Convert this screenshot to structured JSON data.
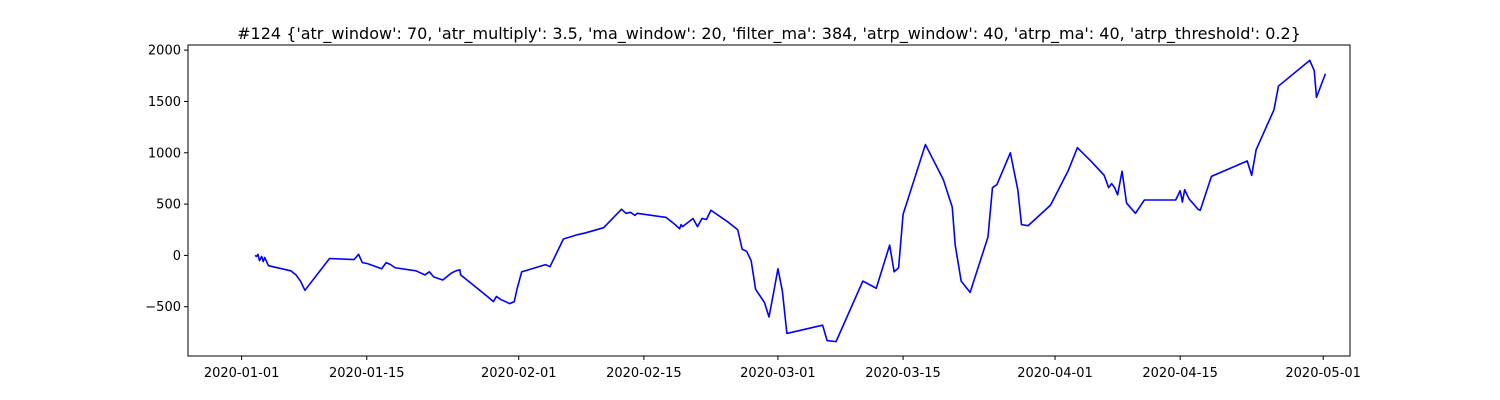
{
  "chart_data": {
    "type": "line",
    "title": "#124 {'atr_window': 70, 'atr_multiply': 3.5, 'ma_window': 20, 'filter_ma': 384, 'atrp_window': 40, 'atrp_ma': 40, 'atrp_threshold': 0.2}",
    "xlabel": "",
    "ylabel": "",
    "xlim": [
      "2019-12-26",
      "2020-05-04"
    ],
    "ylim": [
      -980,
      2050
    ],
    "grid": false,
    "x_ticks": [
      {
        "date": "2020-01-01",
        "label": "2020-01-01"
      },
      {
        "date": "2020-01-15",
        "label": "2020-01-15"
      },
      {
        "date": "2020-02-01",
        "label": "2020-02-01"
      },
      {
        "date": "2020-02-15",
        "label": "2020-02-15"
      },
      {
        "date": "2020-03-01",
        "label": "2020-03-01"
      },
      {
        "date": "2020-03-15",
        "label": "2020-03-15"
      },
      {
        "date": "2020-04-01",
        "label": "2020-04-01"
      },
      {
        "date": "2020-04-15",
        "label": "2020-04-15"
      },
      {
        "date": "2020-05-01",
        "label": "2020-05-01"
      }
    ],
    "y_ticks": [
      {
        "value": -500,
        "label": "−500"
      },
      {
        "value": 0,
        "label": "0"
      },
      {
        "value": 500,
        "label": "500"
      },
      {
        "value": 1000,
        "label": "1000"
      },
      {
        "value": 1500,
        "label": "1500"
      },
      {
        "value": 2000,
        "label": "2000"
      }
    ],
    "series": [
      {
        "color": "#0000ff",
        "points": [
          [
            "2020-01-02 12:00",
            0
          ],
          [
            "2020-01-02 16:00",
            -10
          ],
          [
            "2020-01-02 20:00",
            10
          ],
          [
            "2020-01-03 00:00",
            -50
          ],
          [
            "2020-01-03 06:00",
            -10
          ],
          [
            "2020-01-03 10:00",
            -60
          ],
          [
            "2020-01-03 14:00",
            -20
          ],
          [
            "2020-01-04 00:00",
            -100
          ],
          [
            "2020-01-06 12:00",
            -150
          ],
          [
            "2020-01-07 02:00",
            -190
          ],
          [
            "2020-01-07 14:00",
            -250
          ],
          [
            "2020-01-08 02:00",
            -340
          ],
          [
            "2020-01-10 20:00",
            -30
          ],
          [
            "2020-01-13 14:00",
            -40
          ],
          [
            "2020-01-14 02:00",
            10
          ],
          [
            "2020-01-14 12:00",
            -70
          ],
          [
            "2020-01-15 02:00",
            -80
          ],
          [
            "2020-01-16 16:00",
            -130
          ],
          [
            "2020-01-17 04:00",
            -70
          ],
          [
            "2020-01-17 16:00",
            -90
          ],
          [
            "2020-01-18 04:00",
            -120
          ],
          [
            "2020-01-20 12:00",
            -150
          ],
          [
            "2020-01-21 12:00",
            -190
          ],
          [
            "2020-01-22 00:00",
            -160
          ],
          [
            "2020-01-22 12:00",
            -210
          ],
          [
            "2020-01-23 12:00",
            -240
          ],
          [
            "2020-01-24 12:00",
            -170
          ],
          [
            "2020-01-25 00:00",
            -150
          ],
          [
            "2020-01-25 10:00",
            -140
          ],
          [
            "2020-01-25 12:00",
            -190
          ],
          [
            "2020-01-27 12:00",
            -330
          ],
          [
            "2020-01-28 12:00",
            -400
          ],
          [
            "2020-01-29 04:00",
            -450
          ],
          [
            "2020-01-29 12:00",
            -400
          ],
          [
            "2020-01-30 00:00",
            -430
          ],
          [
            "2020-01-31 00:00",
            -470
          ],
          [
            "2020-01-31 12:00",
            -450
          ],
          [
            "2020-01-31 20:00",
            -320
          ],
          [
            "2020-02-01 08:00",
            -160
          ],
          [
            "2020-02-04 00:00",
            -90
          ],
          [
            "2020-02-04 12:00",
            -110
          ],
          [
            "2020-02-06 00:00",
            160
          ],
          [
            "2020-02-07 12:00",
            200
          ],
          [
            "2020-02-08 12:00",
            220
          ],
          [
            "2020-02-10 12:00",
            270
          ],
          [
            "2020-02-12 12:00",
            450
          ],
          [
            "2020-02-13 00:00",
            410
          ],
          [
            "2020-02-13 12:00",
            420
          ],
          [
            "2020-02-14 00:00",
            390
          ],
          [
            "2020-02-14 06:00",
            410
          ],
          [
            "2020-02-17 12:00",
            370
          ],
          [
            "2020-02-18 12:00",
            300
          ],
          [
            "2020-02-19 00:00",
            260
          ],
          [
            "2020-02-19 04:00",
            300
          ],
          [
            "2020-02-19 08:00",
            280
          ],
          [
            "2020-02-20 12:00",
            360
          ],
          [
            "2020-02-21 00:00",
            280
          ],
          [
            "2020-02-21 12:00",
            360
          ],
          [
            "2020-02-22 00:00",
            350
          ],
          [
            "2020-02-22 12:00",
            440
          ],
          [
            "2020-02-24 12:00",
            320
          ],
          [
            "2020-02-25 12:00",
            250
          ],
          [
            "2020-02-26 00:00",
            60
          ],
          [
            "2020-02-26 12:00",
            40
          ],
          [
            "2020-02-27 00:00",
            -50
          ],
          [
            "2020-02-27 12:00",
            -330
          ],
          [
            "2020-02-28 12:00",
            -460
          ],
          [
            "2020-02-29 00:00",
            -600
          ],
          [
            "2020-02-29 12:00",
            -370
          ],
          [
            "2020-03-01 00:00",
            -130
          ],
          [
            "2020-03-01 12:00",
            -350
          ],
          [
            "2020-03-02 00:00",
            -760
          ],
          [
            "2020-03-06 00:00",
            -680
          ],
          [
            "2020-03-06 12:00",
            -830
          ],
          [
            "2020-03-07 12:00",
            -840
          ],
          [
            "2020-03-10 12:00",
            -250
          ],
          [
            "2020-03-12 00:00",
            -320
          ],
          [
            "2020-03-13 12:00",
            100
          ],
          [
            "2020-03-14 00:00",
            -160
          ],
          [
            "2020-03-14 12:00",
            -120
          ],
          [
            "2020-03-15 00:00",
            400
          ],
          [
            "2020-03-17 12:00",
            1080
          ],
          [
            "2020-03-19 12:00",
            740
          ],
          [
            "2020-03-20 12:00",
            470
          ],
          [
            "2020-03-20 20:00",
            100
          ],
          [
            "2020-03-21 12:00",
            -250
          ],
          [
            "2020-03-22 12:00",
            -360
          ],
          [
            "2020-03-24 12:00",
            180
          ],
          [
            "2020-03-25 00:00",
            660
          ],
          [
            "2020-03-25 12:00",
            690
          ],
          [
            "2020-03-27 00:00",
            1000
          ],
          [
            "2020-03-27 20:00",
            640
          ],
          [
            "2020-03-28 06:00",
            300
          ],
          [
            "2020-03-29 00:00",
            290
          ],
          [
            "2020-03-31 12:00",
            490
          ],
          [
            "2020-04-02 12:00",
            830
          ],
          [
            "2020-04-03 12:00",
            1050
          ],
          [
            "2020-04-05 00:00",
            920
          ],
          [
            "2020-04-06 12:00",
            780
          ],
          [
            "2020-04-07 00:00",
            660
          ],
          [
            "2020-04-07 08:00",
            700
          ],
          [
            "2020-04-07 16:00",
            660
          ],
          [
            "2020-04-08 00:00",
            590
          ],
          [
            "2020-04-08 12:00",
            820
          ],
          [
            "2020-04-09 00:00",
            510
          ],
          [
            "2020-04-10 00:00",
            410
          ],
          [
            "2020-04-11 00:00",
            540
          ],
          [
            "2020-04-14 12:00",
            540
          ],
          [
            "2020-04-15 00:00",
            630
          ],
          [
            "2020-04-15 06:00",
            520
          ],
          [
            "2020-04-15 12:00",
            640
          ],
          [
            "2020-04-16 00:00",
            550
          ],
          [
            "2020-04-17 00:00",
            450
          ],
          [
            "2020-04-17 06:00",
            440
          ],
          [
            "2020-04-18 12:00",
            770
          ],
          [
            "2020-04-22 12:00",
            920
          ],
          [
            "2020-04-23 00:00",
            780
          ],
          [
            "2020-04-23 12:00",
            1030
          ],
          [
            "2020-04-25 12:00",
            1420
          ],
          [
            "2020-04-26 00:00",
            1650
          ],
          [
            "2020-04-29 12:00",
            1900
          ],
          [
            "2020-04-30 00:00",
            1800
          ],
          [
            "2020-04-30 06:00",
            1540
          ],
          [
            "2020-05-01 06:00",
            1770
          ]
        ]
      }
    ]
  }
}
